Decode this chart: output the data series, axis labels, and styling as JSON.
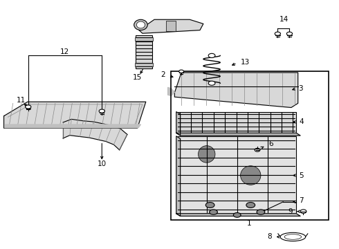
{
  "bg_color": "#ffffff",
  "line_color": "#000000",
  "fig_width": 4.9,
  "fig_height": 3.6,
  "dpi": 100,
  "gray_fill": "#d8d8d8",
  "gray_med": "#c0c0c0",
  "gray_dark": "#888888",
  "gray_light": "#eeeeee"
}
